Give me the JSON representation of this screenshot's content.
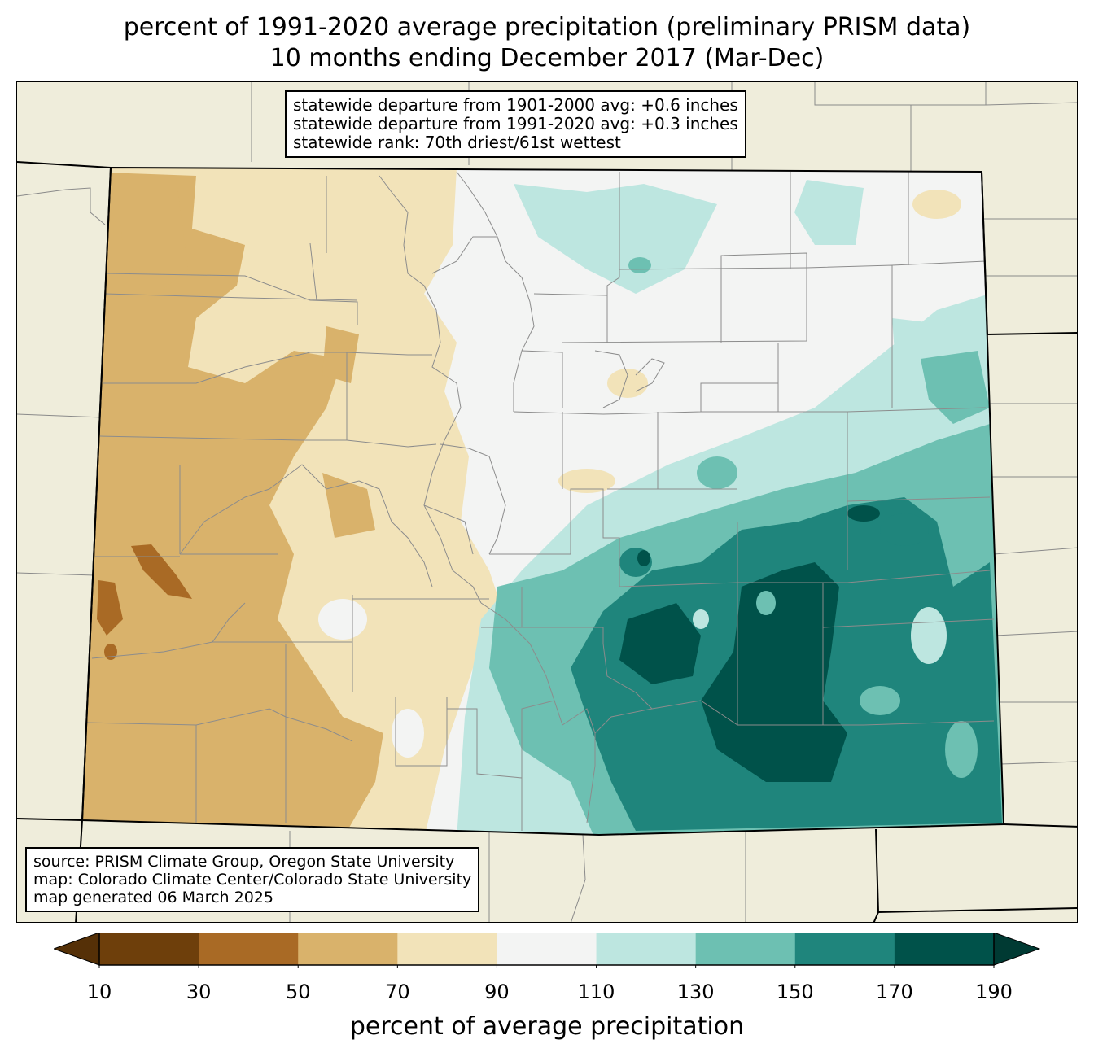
{
  "title": {
    "line1": "percent of 1991-2020 average precipitation (preliminary PRISM data)",
    "line2": "10 months ending December 2017 (Mar-Dec)"
  },
  "stats_box": {
    "lines": [
      "statewide departure from 1901-2000 avg: +0.6 inches",
      "statewide departure from 1991-2020 avg: +0.3 inches",
      "statewide rank: 70th driest/61st wettest"
    ]
  },
  "source_box": {
    "lines": [
      "source: PRISM Climate Group, Oregon State University",
      "map: Colorado Climate Center/Colorado State University",
      "map generated 06 March 2025"
    ]
  },
  "colorbar": {
    "label": "percent of average precipitation",
    "ticks": [
      "10",
      "30",
      "50",
      "70",
      "90",
      "110",
      "130",
      "150",
      "170",
      "190"
    ],
    "colors": [
      "#6e3f0b",
      "#a96a25",
      "#d9b26b",
      "#f2e3b9",
      "#f3f4f3",
      "#bde6e0",
      "#6dc0b2",
      "#1f857c",
      "#00524a"
    ],
    "under_color": "#553007",
    "over_color": "#003a33"
  },
  "map": {
    "background_color": "#efeddb",
    "border_color": "#000000"
  }
}
